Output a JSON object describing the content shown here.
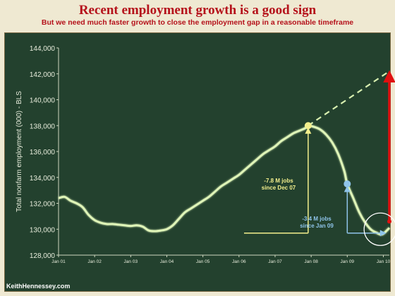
{
  "title": "Recent employment growth is a good sign",
  "subtitle": "But we need much faster growth to close the employment gap in a reasonable timeframe",
  "watermark": "KeithHennessey.com",
  "colors": {
    "title": "#b5121b",
    "board": "#23412e",
    "line": "#dff5b8",
    "trend_dash": "#d8efb0",
    "peak_marker": "#f3ef8c",
    "jan09_marker": "#8fc4ea",
    "gap_arrow": "#e01010",
    "circle": "#ffffff"
  },
  "chart_data": {
    "type": "line",
    "ylabel": "Total nonfarm employment (000) - BLS",
    "xlabel": "",
    "ylim": [
      128000,
      144000
    ],
    "yticks": [
      "128,000",
      "130,000",
      "132,000",
      "134,000",
      "136,000",
      "138,000",
      "140,000",
      "142,000",
      "144,000"
    ],
    "xticks": [
      "Jan 01",
      "Jan 02",
      "Jan 03",
      "Jan 04",
      "Jan 05",
      "Jan 06",
      "Jan 07",
      "Jan 08",
      "Jan 09",
      "Jan 10"
    ],
    "x_range": [
      "Jan 01",
      "Mar 10"
    ],
    "grid": false,
    "series": [
      {
        "x": [
          "Jan 01",
          "Mar 01",
          "May 01",
          "Jul 01",
          "Sep 01",
          "Nov 01",
          "Jan 02",
          "Mar 02",
          "May 02",
          "Jul 02",
          "Sep 02",
          "Nov 02",
          "Jan 03",
          "Mar 03",
          "May 03",
          "Jul 03",
          "Sep 03",
          "Nov 03",
          "Jan 04",
          "Mar 04",
          "May 04",
          "Jul 04",
          "Sep 04",
          "Nov 04",
          "Jan 05",
          "Mar 05",
          "May 05",
          "Jul 05",
          "Sep 05",
          "Nov 05",
          "Jan 06",
          "Mar 06",
          "May 06",
          "Jul 06",
          "Sep 06",
          "Nov 06",
          "Jan 07",
          "Mar 07",
          "May 07",
          "Jul 07",
          "Sep 07",
          "Nov 07",
          "Dec 07",
          "Feb 08",
          "Apr 08",
          "Jun 08",
          "Aug 08",
          "Oct 08",
          "Dec 08",
          "Jan 09",
          "Mar 09",
          "May 09",
          "Jul 09",
          "Sep 09",
          "Nov 09",
          "Dec 09",
          "Jan 10",
          "Mar 10"
        ],
        "values": [
          132400,
          132500,
          132200,
          132000,
          131700,
          131100,
          130700,
          130500,
          130400,
          130400,
          130350,
          130300,
          130250,
          130300,
          130200,
          129900,
          129850,
          129900,
          130000,
          130300,
          130800,
          131300,
          131600,
          131900,
          132200,
          132500,
          132900,
          133300,
          133600,
          133900,
          134200,
          134600,
          135000,
          135400,
          135800,
          136100,
          136400,
          136800,
          137100,
          137400,
          137600,
          137800,
          138000,
          137900,
          137700,
          137300,
          136700,
          135800,
          134500,
          133500,
          132400,
          131300,
          130500,
          129950,
          129700,
          129600,
          129650,
          130100
        ]
      }
    ],
    "trend_line": {
      "x": [
        "Dec 07",
        "Mar 10"
      ],
      "values": [
        138000,
        142200
      ],
      "style": "dashed"
    },
    "markers": [
      {
        "x": "Dec 07",
        "value": 138000,
        "color": "#f3ef8c"
      },
      {
        "x": "Jan 09",
        "value": 133500,
        "color": "#8fc4ea"
      }
    ],
    "annotations": [
      {
        "text_line1": "-7.8 M jobs",
        "text_line2": "since Dec 07",
        "color": "#f3ef8c"
      },
      {
        "text_line1": "-3.4 M jobs",
        "text_line2": "since Jan 09",
        "color": "#8fc4ea"
      }
    ],
    "gap_arrow": {
      "x": "Mar 10",
      "from": 130600,
      "to": 141800,
      "color": "#e01010"
    },
    "highlight_circle": {
      "x": "Dec 09",
      "value": 130000
    }
  }
}
